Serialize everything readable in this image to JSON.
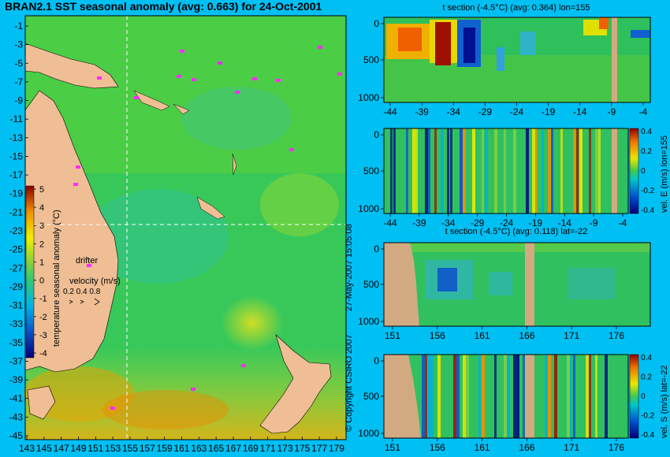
{
  "main_title": "BRAN2.1 SST seasonal anomaly (avg: 0.663) for 24-Oct-2001",
  "copyright": "© Copyright CSIRO 2007",
  "timestamp": "27-May-2007 15:05:08",
  "map": {
    "lat_ticks": [
      "-1",
      "-3",
      "-5",
      "-7",
      "-9",
      "-11",
      "-13",
      "-15",
      "-17",
      "-19",
      "-21",
      "-23",
      "-25",
      "-27",
      "-29",
      "-31",
      "-33",
      "-35",
      "-37",
      "-39",
      "-41",
      "-43",
      "-45"
    ],
    "lon_ticks": [
      "143",
      "145",
      "147",
      "149",
      "151",
      "153",
      "155",
      "157",
      "159",
      "161",
      "163",
      "165",
      "167",
      "169",
      "171",
      "173",
      "175",
      "177",
      "179"
    ],
    "colorbar_label": "temperature seasonal anomaly (°C)",
    "colorbar_ticks": [
      "5",
      "4",
      "3",
      "2",
      "1",
      "0",
      "-1",
      "-2",
      "-3",
      "-4"
    ],
    "drifter_label": "drifter",
    "velocity_label": "velocity (m/s)",
    "velocity_ticks": "0.2 0.4 0.8",
    "crosshair": {
      "lon": 155,
      "lat": -22
    }
  },
  "chart_data": [
    {
      "type": "heatmap",
      "title": "t section (-4.5°C) (avg: 0.364) lon=155",
      "x_ticks": [
        "-44",
        "-39",
        "-34",
        "-29",
        "-24",
        "-19",
        "-14",
        "-9",
        "-4"
      ],
      "y_ticks": [
        "0",
        "500",
        "1000"
      ],
      "xlim": [
        -45,
        0
      ],
      "ylim": [
        1050,
        0
      ]
    },
    {
      "type": "heatmap",
      "title": "",
      "x_ticks": [
        "-44",
        "-39",
        "-34",
        "-29",
        "-24",
        "-19",
        "-14",
        "-9",
        "-4"
      ],
      "y_ticks": [
        "0",
        "500",
        "1000"
      ],
      "colorbar_label": "vel. E (m/s) lon=155",
      "colorbar_ticks": [
        "0.4",
        "0.2",
        "0",
        "-0.2",
        "-0.4"
      ],
      "xlim": [
        -45,
        0
      ],
      "ylim": [
        1050,
        0
      ]
    },
    {
      "type": "heatmap",
      "title": "t section (-4.5°C) (avg: 0.118) lat=-22",
      "x_ticks": [
        "151",
        "156",
        "161",
        "166",
        "171",
        "176"
      ],
      "y_ticks": [
        "0",
        "500",
        "1000"
      ],
      "xlim": [
        150,
        180
      ],
      "ylim": [
        1050,
        0
      ]
    },
    {
      "type": "heatmap",
      "title": "",
      "x_ticks": [
        "151",
        "156",
        "161",
        "166",
        "171",
        "176"
      ],
      "y_ticks": [
        "0",
        "500",
        "1000"
      ],
      "colorbar_label": "vel. S (m/s) lat=-22",
      "colorbar_ticks": [
        "0.4",
        "0.2",
        "0",
        "-0.2",
        "-0.4"
      ],
      "xlim": [
        150,
        180
      ],
      "ylim": [
        1050,
        0
      ]
    }
  ]
}
